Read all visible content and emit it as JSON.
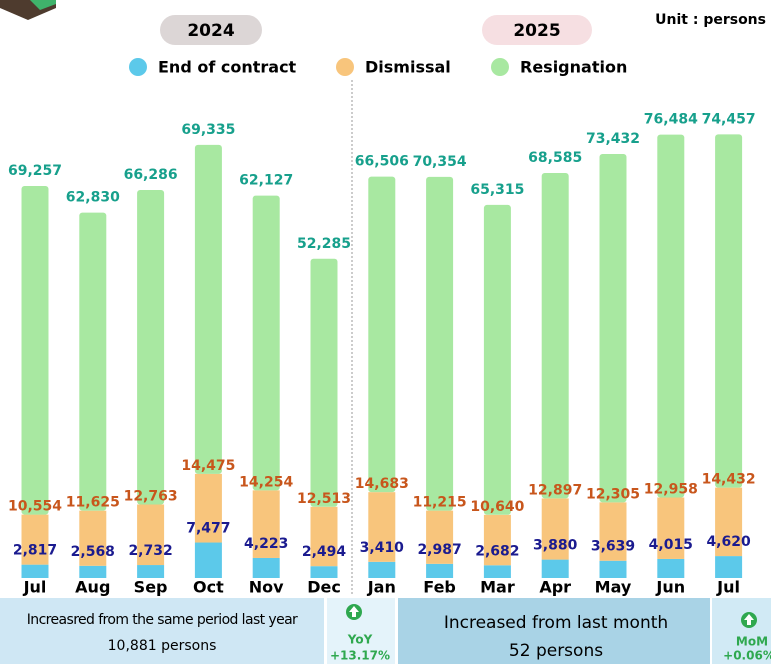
{
  "chart_data": {
    "type": "bar",
    "stacked": true,
    "unit": "Unit : persons",
    "year_labels": [
      "2024",
      "2025"
    ],
    "categories": [
      "Jul",
      "Aug",
      "Sep",
      "Oct",
      "Nov",
      "Dec",
      "Jan",
      "Feb",
      "Mar",
      "Apr",
      "May",
      "Jun",
      "Jul"
    ],
    "series": [
      {
        "name": "End of contract",
        "color": "#5cc9ea",
        "label_color": "#1b1b8f",
        "values": [
          2817,
          2568,
          2732,
          7477,
          4223,
          2494,
          3410,
          2987,
          2682,
          3880,
          3639,
          4015,
          4620
        ],
        "value_labels": [
          "2,817",
          "2,568",
          "2,732",
          "7,477",
          "4,223",
          "2,494",
          "3,410",
          "2,987",
          "2,682",
          "3,880",
          "3,639",
          "4,015",
          "4,620"
        ]
      },
      {
        "name": "Dismissal",
        "color": "#f8c57c",
        "label_color": "#c8561c",
        "values": [
          10554,
          11625,
          12763,
          14475,
          14254,
          12513,
          14683,
          11215,
          10640,
          12897,
          12305,
          12958,
          14432
        ],
        "value_labels": [
          "10,554",
          "11,625",
          "12,763",
          "14,475",
          "14,254",
          "12,513",
          "14,683",
          "11,215",
          "10,640",
          "12,897",
          "12,305",
          "12,958",
          "14,432"
        ]
      },
      {
        "name": "Resignation",
        "color": "#a8e8a1",
        "label_color": "#17a08c",
        "values": [
          69257,
          62830,
          66286,
          69335,
          62127,
          52285,
          66506,
          70354,
          65315,
          68585,
          73432,
          76484,
          74457
        ],
        "value_labels": [
          "69,257",
          "62,830",
          "66,286",
          "69,335",
          "62,127",
          "52,285",
          "66,506",
          "70,354",
          "65,315",
          "68,585",
          "73,432",
          "76,484",
          "74,457"
        ]
      }
    ],
    "summary": {
      "yoy": {
        "text": "Increasred from the same period last year",
        "amount": "10,881 persons",
        "tag": "YoY",
        "change": "+13.17%"
      },
      "mom": {
        "text": "Increased from last month",
        "amount": "52 persons",
        "tag": "MoM",
        "change": "+0.06%"
      }
    }
  }
}
